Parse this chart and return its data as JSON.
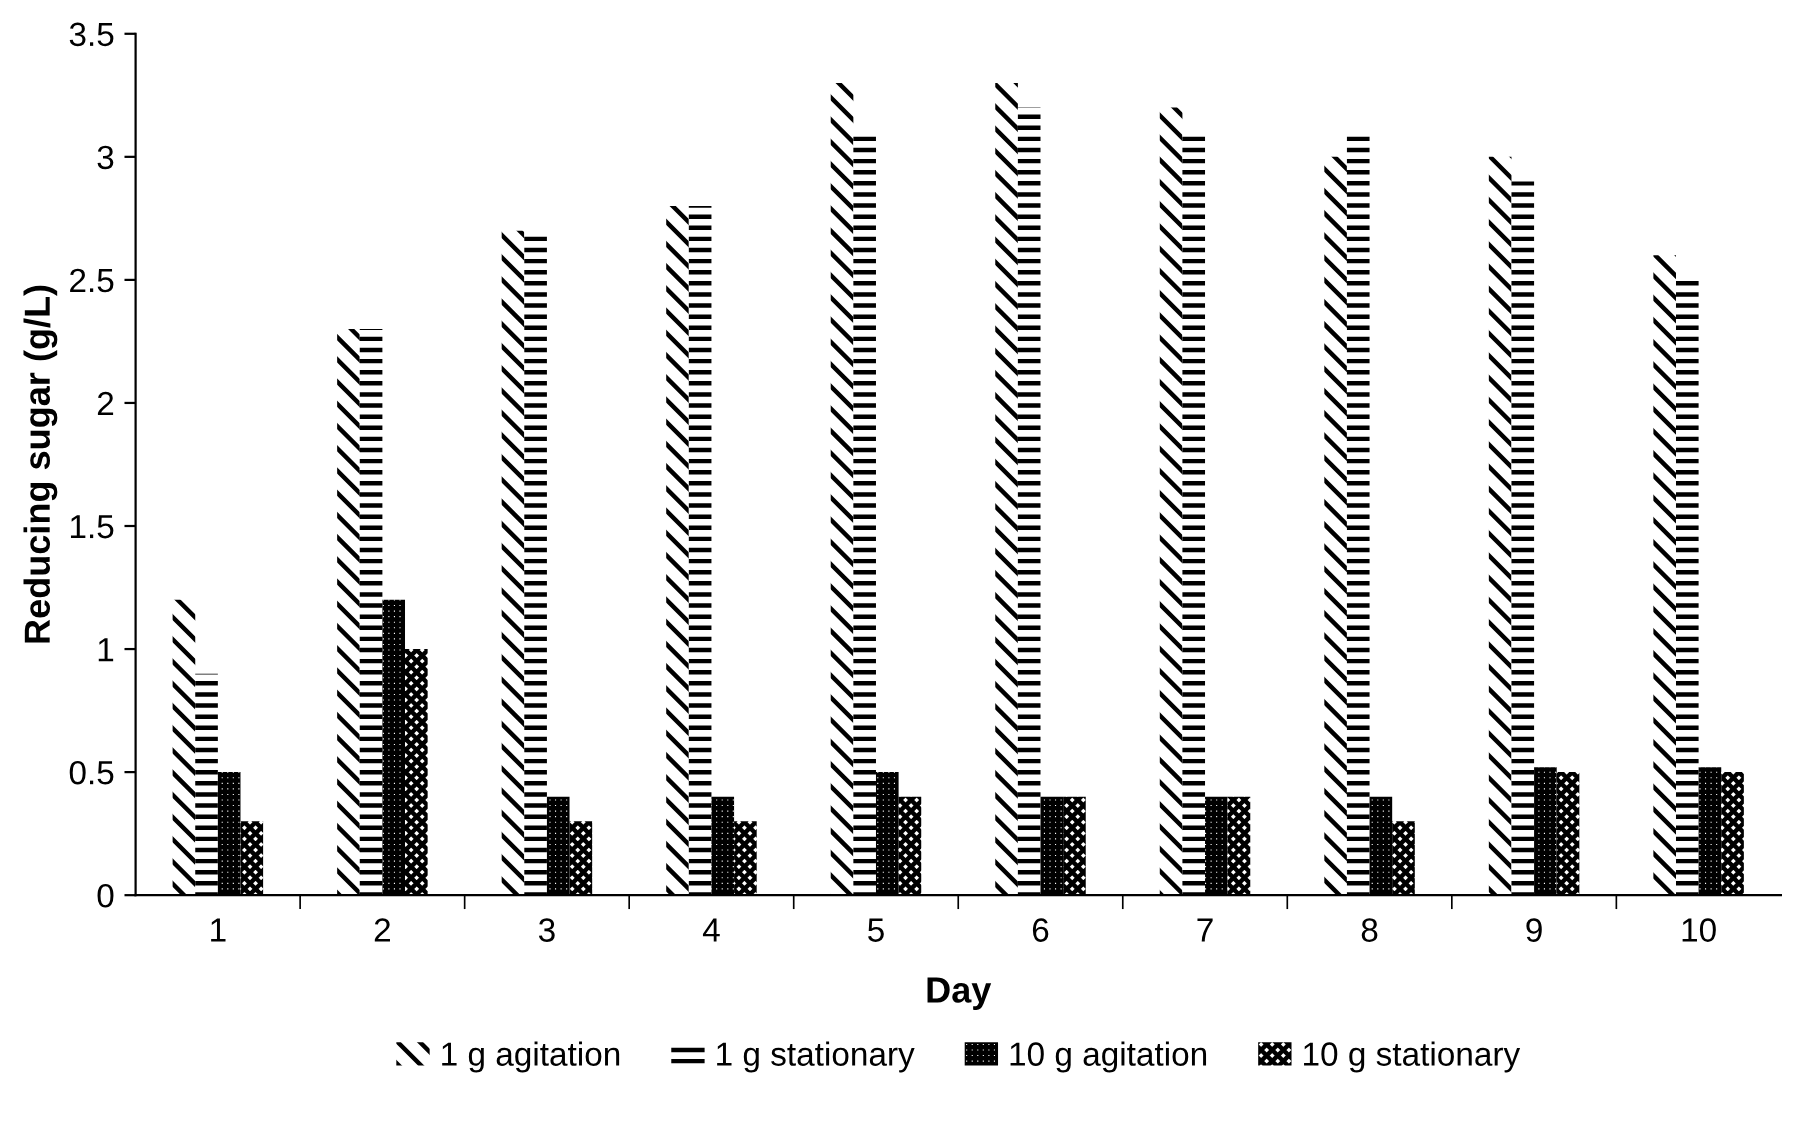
{
  "chart_data": {
    "type": "bar",
    "xlabel": "Day",
    "ylabel": "Reducing sugar (g/L)",
    "categories": [
      "1",
      "2",
      "3",
      "4",
      "5",
      "6",
      "7",
      "8",
      "9",
      "10"
    ],
    "series": [
      {
        "name": "1 g agitation",
        "color": "#000000",
        "values": [
          1.2,
          2.3,
          2.7,
          2.8,
          3.3,
          3.3,
          3.2,
          3.0,
          3.0,
          2.6
        ]
      },
      {
        "name": "1 g stationary",
        "color": "#000000",
        "values": [
          0.9,
          2.3,
          2.7,
          2.8,
          3.1,
          3.2,
          3.1,
          3.1,
          2.9,
          2.5
        ]
      },
      {
        "name": "10 g agitation",
        "color": "#000000",
        "values": [
          0.5,
          1.2,
          0.4,
          0.4,
          0.5,
          0.4,
          0.4,
          0.4,
          0.52,
          0.52
        ]
      },
      {
        "name": "10 g stationary",
        "color": "#000000",
        "values": [
          0.3,
          1.0,
          0.3,
          0.3,
          0.4,
          0.4,
          0.4,
          0.3,
          0.5,
          0.5
        ]
      }
    ],
    "ylim": [
      0,
      3.5
    ],
    "yticks": [
      0,
      0.5,
      1,
      1.5,
      2,
      2.5,
      3,
      3.5
    ],
    "grid": false,
    "legend": "bottom"
  }
}
